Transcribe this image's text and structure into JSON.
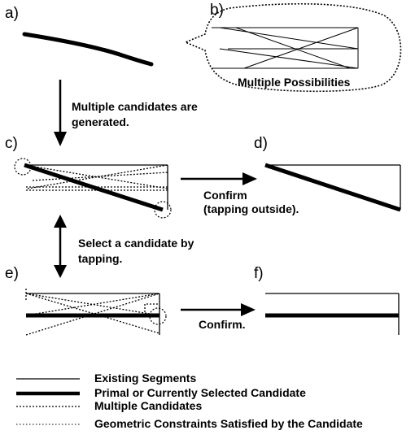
{
  "panels": {
    "a": "a)",
    "b": "b)",
    "c": "c)",
    "d": "d)",
    "e": "e)",
    "f": "f)"
  },
  "captions": {
    "multiple_possibilities": "Multiple Possibilities",
    "generated_line1": "Multiple candidates are",
    "generated_line2": "generated.",
    "confirm_outside_line1": "Confirm",
    "confirm_outside_line2": "(tapping outside).",
    "select_line1": "Select a candidate by",
    "select_line2": "tapping.",
    "confirm": "Confirm."
  },
  "legend": {
    "existing": "Existing Segments",
    "primal": "Primal or Currently Selected Candidate",
    "multiple": "Multiple Candidates",
    "constraints": "Geometric Constraints Satisfied by the Candidate"
  }
}
